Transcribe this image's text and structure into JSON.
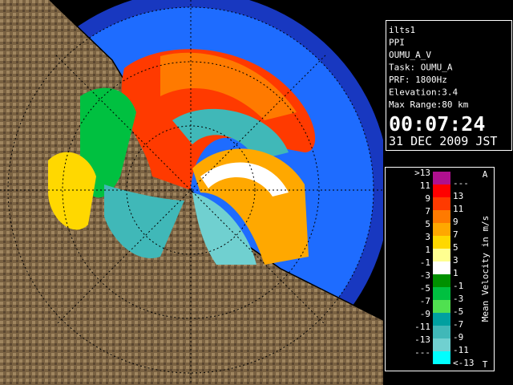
{
  "info": {
    "lines": [
      "ilts1",
      "PPI",
      "OUMU_A_V",
      "Task: OUMU_A",
      "PRF: 1800Hz",
      "Elevation:3.4",
      "Max Range:80 km"
    ],
    "time": "00:07:24",
    "date": "31 DEC 2009 JST"
  },
  "legend": {
    "title": "Mean Velocity in m/s",
    "top_mark": "A",
    "bottom_mark": "T",
    "rows": [
      {
        "left": ">13",
        "right": "---",
        "color": "#b0108f"
      },
      {
        "left": "11",
        "right": "13",
        "color": "#ff0000"
      },
      {
        "left": "9",
        "right": "11",
        "color": "#ff3a00"
      },
      {
        "left": "7",
        "right": "9",
        "color": "#ff7a00"
      },
      {
        "left": "5",
        "right": "7",
        "color": "#ffa800"
      },
      {
        "left": "3",
        "right": "5",
        "color": "#ffd800"
      },
      {
        "left": "1",
        "right": "3",
        "color": "#ffff90"
      },
      {
        "left": "-1",
        "right": "1",
        "color": "#ffffff"
      },
      {
        "left": "-3",
        "right": "-1",
        "color": "#009000"
      },
      {
        "left": "-5",
        "right": "-3",
        "color": "#00c040"
      },
      {
        "left": "-7",
        "right": "-5",
        "color": "#50e050"
      },
      {
        "left": "-9",
        "right": "-7",
        "color": "#00a0a0"
      },
      {
        "left": "-11",
        "right": "-9",
        "color": "#40b8b8"
      },
      {
        "left": "-13",
        "right": "-11",
        "color": "#70d0d0"
      },
      {
        "left": "---",
        "right": "<-13",
        "color": "#00ffff"
      }
    ]
  }
}
